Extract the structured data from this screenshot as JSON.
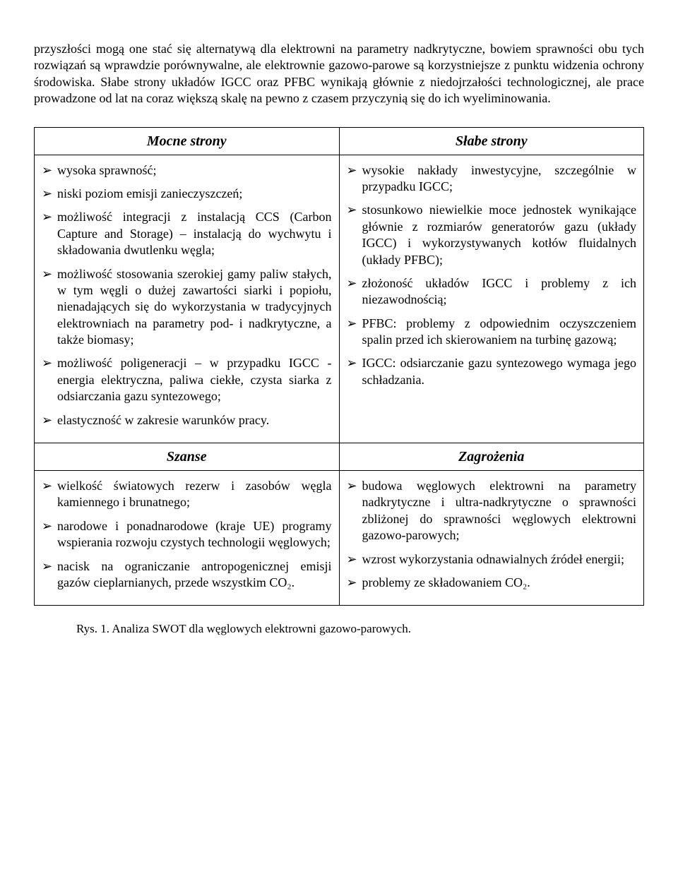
{
  "intro": "przyszłości mogą one stać się alternatywą dla elektrowni na parametry nadkrytyczne, bowiem sprawności obu tych rozwiązań są wprawdzie porównywalne, ale elektrownie gazowo-parowe są korzystniejsze z punktu widzenia ochrony środowiska. Słabe strony układów IGCC oraz PFBC wynikają głównie z niedojrzałości technologicznej, ale prace prowadzone od lat na coraz większą skalę na pewno z czasem przyczynią się do ich wyeliminowania.",
  "headers": {
    "strengths": "Mocne strony",
    "weaknesses": "Słabe strony",
    "opportunities": "Szanse",
    "threats": "Zagrożenia"
  },
  "strengths": [
    "wysoka sprawność;",
    "niski poziom emisji zanieczyszczeń;",
    "możliwość integracji z instalacją CCS (Carbon Capture and Storage) – instalacją do wychwytu i składowania dwutlenku węgla;",
    "możliwość stosowania szerokiej gamy paliw stałych, w tym węgli o dużej zawartości siarki i popiołu, nienadających się do wykorzystania w tradycyjnych elektrowniach na parametry pod- i nadkrytyczne, a także biomasy;",
    "możliwość poligeneracji – w przypadku IGCC - energia elektryczna, paliwa ciekłe, czysta siarka z odsiarczania gazu syntezowego;",
    "elastyczność w zakresie warunków pracy."
  ],
  "weaknesses": [
    "wysokie nakłady inwestycyjne, szczególnie w przypadku IGCC;",
    "stosunkowo niewielkie moce jednostek wynikające głównie z rozmiarów generatorów gazu (układy IGCC) i wykorzystywanych kotłów fluidalnych (układy PFBC);",
    "złożoność układów IGCC i problemy z ich niezawodnością;",
    "PFBC: problemy z odpowiednim oczyszczeniem spalin przed ich skierowaniem na turbinę gazową;",
    "IGCC: odsiarczanie gazu syntezowego wymaga jego schładzania."
  ],
  "opportunities": [
    "wielkość światowych rezerw i zasobów węgla kamiennego i brunatnego;",
    "narodowe i ponadnarodowe (kraje UE) programy wspierania rozwoju czystych technologii węglowych;",
    "nacisk na ograniczanie antropogenicznej emisji gazów cieplarnianych, przede wszystkim CO₂."
  ],
  "threats": [
    "budowa węglowych elektrowni na parametry nadkrytyczne i ultra-nadkrytyczne o sprawności zbliżonej do sprawności węglowych elektrowni gazowo-parowych;",
    "wzrost wykorzystania odnawialnych źródeł energii;",
    "problemy ze składowaniem CO₂."
  ],
  "caption": "Rys. 1.   Analiza SWOT dla węglowych elektrowni gazowo-parowych."
}
